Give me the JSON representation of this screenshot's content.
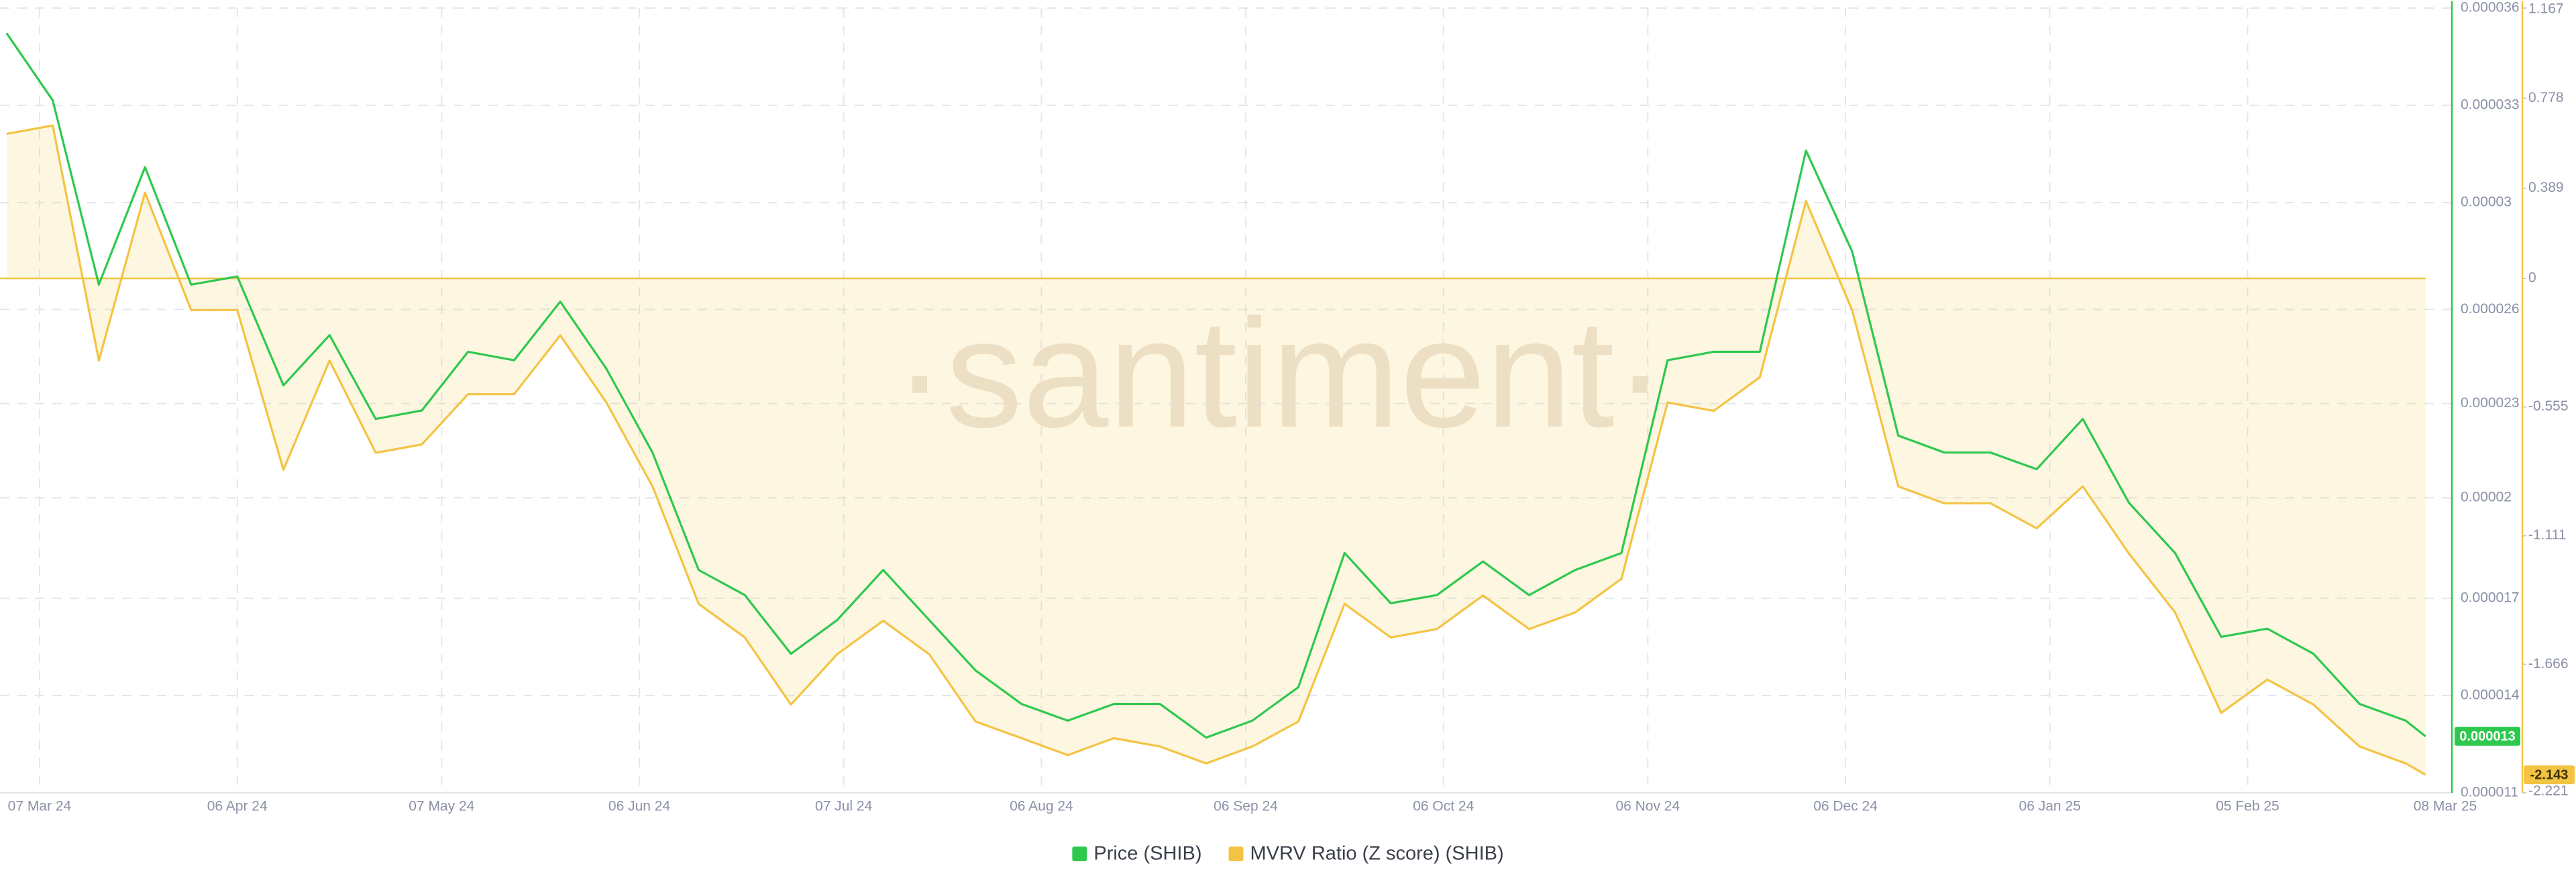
{
  "chart_data": {
    "type": "line",
    "watermark": "·santiment·",
    "x": [
      "2024-03-02",
      "2024-03-09",
      "2024-03-16",
      "2024-03-23",
      "2024-03-30",
      "2024-04-06",
      "2024-04-13",
      "2024-04-20",
      "2024-04-27",
      "2024-05-04",
      "2024-05-11",
      "2024-05-18",
      "2024-05-25",
      "2024-06-01",
      "2024-06-08",
      "2024-06-15",
      "2024-06-22",
      "2024-06-29",
      "2024-07-06",
      "2024-07-13",
      "2024-07-20",
      "2024-07-27",
      "2024-08-03",
      "2024-08-10",
      "2024-08-17",
      "2024-08-24",
      "2024-08-31",
      "2024-09-07",
      "2024-09-14",
      "2024-09-21",
      "2024-09-28",
      "2024-10-05",
      "2024-10-12",
      "2024-10-19",
      "2024-10-26",
      "2024-11-02",
      "2024-11-09",
      "2024-11-16",
      "2024-11-23",
      "2024-11-30",
      "2024-12-07",
      "2024-12-14",
      "2024-12-21",
      "2024-12-28",
      "2025-01-04",
      "2025-01-11",
      "2025-01-18",
      "2025-01-25",
      "2025-02-01",
      "2025-02-08",
      "2025-02-15",
      "2025-02-22",
      "2025-03-01",
      "2025-03-04"
    ],
    "xlim": [
      "2024-03-01",
      "2025-03-08"
    ],
    "xticks": [
      {
        "value": "2024-03-07",
        "label": "07 Mar 24"
      },
      {
        "value": "2024-04-06",
        "label": "06 Apr 24"
      },
      {
        "value": "2024-05-07",
        "label": "07 May 24"
      },
      {
        "value": "2024-06-06",
        "label": "06 Jun 24"
      },
      {
        "value": "2024-07-07",
        "label": "07 Jul 24"
      },
      {
        "value": "2024-08-06",
        "label": "06 Aug 24"
      },
      {
        "value": "2024-09-06",
        "label": "06 Sep 24"
      },
      {
        "value": "2024-10-06",
        "label": "06 Oct 24"
      },
      {
        "value": "2024-11-06",
        "label": "06 Nov 24"
      },
      {
        "value": "2024-12-06",
        "label": "06 Dec 24"
      },
      {
        "value": "2025-01-06",
        "label": "06 Jan 25"
      },
      {
        "value": "2025-02-05",
        "label": "05 Feb 25"
      },
      {
        "value": "2025-03-08",
        "label": "08 Mar 25"
      }
    ],
    "ylim": [
      1.1e-05,
      3.6e-05
    ],
    "yticks": [
      1.1e-05,
      {
        "value": 1.41e-05,
        "label": "0.000014"
      },
      {
        "value": 1.72e-05,
        "label": "0.000017"
      },
      {
        "value": 2.04e-05,
        "label": "0.00002"
      },
      {
        "value": 2.34e-05,
        "label": "0.000023"
      },
      {
        "value": 2.64e-05,
        "label": "0.000026"
      },
      {
        "value": 2.98e-05,
        "label": "0.00003"
      },
      {
        "value": 3.29e-05,
        "label": "0.000033"
      },
      3.6e-05
    ],
    "y2lim": [
      -2.221,
      1.167
    ],
    "y2ticks": [
      -2.221,
      -1.666,
      -1.111,
      -0.555,
      0,
      0.389,
      0.778,
      1.167
    ],
    "grid": true,
    "series": [
      {
        "name": "Price (SHIB)",
        "color": "#2fc84f",
        "axis": "y",
        "current_label": "0.000013",
        "values": [
          3.52e-05,
          3.306e-05,
          2.719e-05,
          3.093e-05,
          2.719e-05,
          2.745e-05,
          2.398e-05,
          2.558e-05,
          2.291e-05,
          2.318e-05,
          2.505e-05,
          2.478e-05,
          2.665e-05,
          2.451e-05,
          2.184e-05,
          1.81e-05,
          1.73e-05,
          1.543e-05,
          1.65e-05,
          1.81e-05,
          1.65e-05,
          1.49e-05,
          1.383e-05,
          1.33e-05,
          1.383e-05,
          1.383e-05,
          1.276e-05,
          1.33e-05,
          1.437e-05,
          1.864e-05,
          1.704e-05,
          1.73e-05,
          1.837e-05,
          1.73e-05,
          1.81e-05,
          1.864e-05,
          2.478e-05,
          2.505e-05,
          2.505e-05,
          3.146e-05,
          2.825e-05,
          2.238e-05,
          2.184e-05,
          2.184e-05,
          2.131e-05,
          2.291e-05,
          2.024e-05,
          1.864e-05,
          1.597e-05,
          1.623e-05,
          1.543e-05,
          1.383e-05,
          1.33e-05,
          1.28e-05
        ]
      },
      {
        "name": "MVRV Ratio (Z score) (SHIB)",
        "color": "#f3c443",
        "axis": "y2",
        "fill_to_zero": true,
        "current_label": "-2.143",
        "values": [
          0.624,
          0.66,
          -0.355,
          0.37,
          -0.137,
          -0.137,
          -0.826,
          -0.355,
          -0.753,
          -0.717,
          -0.5,
          -0.5,
          -0.246,
          -0.536,
          -0.898,
          -1.405,
          -1.55,
          -1.84,
          -1.623,
          -1.478,
          -1.623,
          -1.913,
          -1.985,
          -2.058,
          -1.985,
          -2.021,
          -2.094,
          -2.021,
          -1.913,
          -1.405,
          -1.55,
          -1.514,
          -1.369,
          -1.514,
          -1.442,
          -1.297,
          -0.536,
          -0.572,
          -0.427,
          0.334,
          -0.137,
          -0.898,
          -0.971,
          -0.971,
          -1.079,
          -0.898,
          -1.188,
          -1.442,
          -1.876,
          -1.732,
          -1.84,
          -2.021,
          -2.094,
          -2.143
        ]
      }
    ]
  }
}
